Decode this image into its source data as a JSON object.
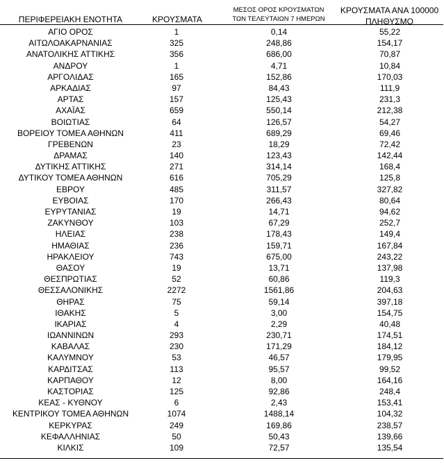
{
  "headers": {
    "region": "ΠΕΡΙΦΕΡΕΙΑΚΗ ΕΝΟΤΗΤΑ",
    "cases": "ΚΡΟΥΣΜΑΤΑ",
    "avg_line1": "ΜΕΣΟΣ ΟΡΟΣ ΚΡΟΥΣΜΑΤΩΝ",
    "avg_line2": "ΤΩΝ ΤΕΛΕΥΤΑΙΩΝ 7 ΗΜΕΡΩΝ",
    "rate_line1": "ΚΡΟΥΣΜΑΤΑ ΑΝΑ 100000",
    "rate_line2": "ΠΛΗΘΥΣΜΟ"
  },
  "rows": [
    {
      "region": "ΑΓΙΟ ΟΡΟΣ",
      "cases": "1",
      "avg7": "0,14",
      "per100k": "55,22"
    },
    {
      "region": "ΑΙΤΩΛΟΑΚΑΡΝΑΝΙΑΣ",
      "cases": "325",
      "avg7": "248,86",
      "per100k": "154,17"
    },
    {
      "region": "ΑΝΑΤΟΛΙΚΗΣ ΑΤΤΙΚΗΣ",
      "cases": "356",
      "avg7": "686,00",
      "per100k": "70,87"
    },
    {
      "region": "ΑΝΔΡΟΥ",
      "cases": "1",
      "avg7": "4,71",
      "per100k": "10,84"
    },
    {
      "region": "ΑΡΓΟΛΙΔΑΣ",
      "cases": "165",
      "avg7": "152,86",
      "per100k": "170,03"
    },
    {
      "region": "ΑΡΚΑΔΙΑΣ",
      "cases": "97",
      "avg7": "84,43",
      "per100k": "111,9"
    },
    {
      "region": "ΑΡΤΑΣ",
      "cases": "157",
      "avg7": "125,43",
      "per100k": "231,3"
    },
    {
      "region": "ΑΧΑΪΑΣ",
      "cases": "659",
      "avg7": "550,14",
      "per100k": "212,38"
    },
    {
      "region": "ΒΟΙΩΤΙΑΣ",
      "cases": "64",
      "avg7": "126,57",
      "per100k": "54,27"
    },
    {
      "region": "ΒΟΡΕΙΟΥ ΤΟΜΕΑ ΑΘΗΝΩΝ",
      "cases": "411",
      "avg7": "689,29",
      "per100k": "69,46"
    },
    {
      "region": "ΓΡΕΒΕΝΩΝ",
      "cases": "23",
      "avg7": "18,29",
      "per100k": "72,42"
    },
    {
      "region": "ΔΡΑΜΑΣ",
      "cases": "140",
      "avg7": "123,43",
      "per100k": "142,44"
    },
    {
      "region": "ΔΥΤΙΚΗΣ ΑΤΤΙΚΗΣ",
      "cases": "271",
      "avg7": "314,14",
      "per100k": "168,4"
    },
    {
      "region": "ΔΥΤΙΚΟΥ ΤΟΜΕΑ ΑΘΗΝΩΝ",
      "cases": "616",
      "avg7": "705,29",
      "per100k": "125,8"
    },
    {
      "region": "ΕΒΡΟΥ",
      "cases": "485",
      "avg7": "311,57",
      "per100k": "327,82"
    },
    {
      "region": "ΕΥΒΟΙΑΣ",
      "cases": "170",
      "avg7": "266,43",
      "per100k": "80,64"
    },
    {
      "region": "ΕΥΡΥΤΑΝΙΑΣ",
      "cases": "19",
      "avg7": "14,71",
      "per100k": "94,62"
    },
    {
      "region": "ΖΑΚΥΝΘΟΥ",
      "cases": "103",
      "avg7": "67,29",
      "per100k": "252,7"
    },
    {
      "region": "ΗΛΕΙΑΣ",
      "cases": "238",
      "avg7": "178,43",
      "per100k": "149,4"
    },
    {
      "region": "ΗΜΑΘΙΑΣ",
      "cases": "236",
      "avg7": "159,71",
      "per100k": "167,84"
    },
    {
      "region": "ΗΡΑΚΛΕΙΟΥ",
      "cases": "743",
      "avg7": "675,00",
      "per100k": "243,22"
    },
    {
      "region": "ΘΑΣΟΥ",
      "cases": "19",
      "avg7": "13,71",
      "per100k": "137,98"
    },
    {
      "region": "ΘΕΣΠΡΩΤΙΑΣ",
      "cases": "52",
      "avg7": "60,86",
      "per100k": "119,3"
    },
    {
      "region": "ΘΕΣΣΑΛΟΝΙΚΗΣ",
      "cases": "2272",
      "avg7": "1561,86",
      "per100k": "204,63"
    },
    {
      "region": "ΘΗΡΑΣ",
      "cases": "75",
      "avg7": "59,14",
      "per100k": "397,18"
    },
    {
      "region": "ΙΘΑΚΗΣ",
      "cases": "5",
      "avg7": "3,00",
      "per100k": "154,75"
    },
    {
      "region": "ΙΚΑΡΙΑΣ",
      "cases": "4",
      "avg7": "2,29",
      "per100k": "40,48"
    },
    {
      "region": "ΙΩΑΝΝΙΝΩΝ",
      "cases": "293",
      "avg7": "230,71",
      "per100k": "174,51"
    },
    {
      "region": "ΚΑΒΑΛΑΣ",
      "cases": "230",
      "avg7": "171,29",
      "per100k": "184,12"
    },
    {
      "region": "ΚΑΛΥΜΝΟΥ",
      "cases": "53",
      "avg7": "46,57",
      "per100k": "179,95"
    },
    {
      "region": "ΚΑΡΔΙΤΣΑΣ",
      "cases": "113",
      "avg7": "95,57",
      "per100k": "99,52"
    },
    {
      "region": "ΚΑΡΠΑΘΟΥ",
      "cases": "12",
      "avg7": "8,00",
      "per100k": "164,16"
    },
    {
      "region": "ΚΑΣΤΟΡΙΑΣ",
      "cases": "125",
      "avg7": "92,86",
      "per100k": "248,4"
    },
    {
      "region": "ΚΕΑΣ - ΚΥΘΝΟΥ",
      "cases": "6",
      "avg7": "2,43",
      "per100k": "153,41"
    },
    {
      "region": "ΚΕΝΤΡΙΚΟΥ ΤΟΜΕΑ ΑΘΗΝΩΝ",
      "cases": "1074",
      "avg7": "1488,14",
      "per100k": "104,32"
    },
    {
      "region": "ΚΕΡΚΥΡΑΣ",
      "cases": "249",
      "avg7": "169,86",
      "per100k": "238,57"
    },
    {
      "region": "ΚΕΦΑΛΛΗΝΙΑΣ",
      "cases": "50",
      "avg7": "50,43",
      "per100k": "139,66"
    },
    {
      "region": "ΚΙΛΚΙΣ",
      "cases": "109",
      "avg7": "72,57",
      "per100k": "135,54"
    }
  ]
}
